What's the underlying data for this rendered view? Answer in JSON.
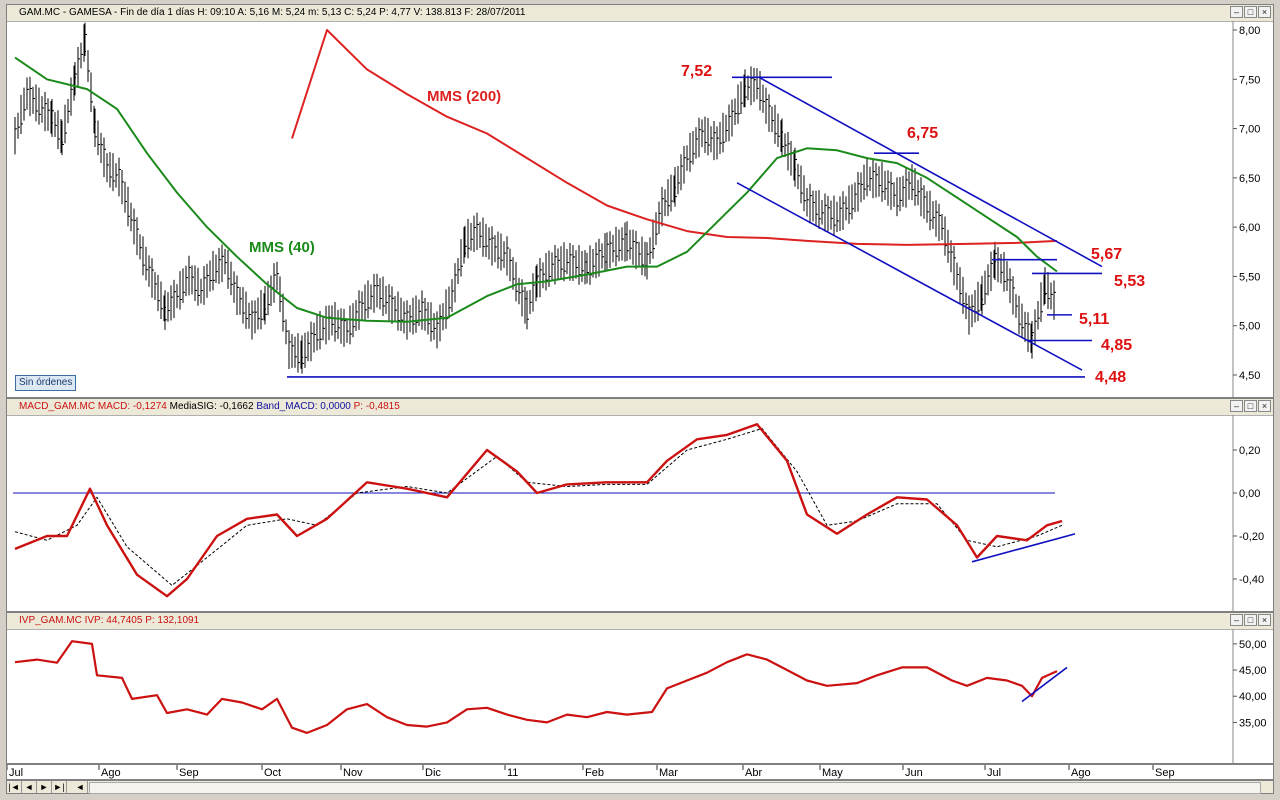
{
  "panels": {
    "price": {
      "header": "GAM.MC - GAMESA - Fin de día 1 días  H: 09:10  A: 5,16  M: 5,24  m: 5,13  C: 5,24  P: 4,77  V: 138.813  F: 28/07/2011",
      "header_p": "P : 4,77",
      "badge": "Sin órdenes"
    },
    "macd": {
      "header_name": "MACD_GAM.MC",
      "header_macd": "MACD: -0,1274",
      "header_sig": "MediaSIG: -0,1662",
      "header_band": "Band_MACD: 0,0000",
      "header_p": "P: -0,4815"
    },
    "ivp": {
      "header_name": "IVP_GAM.MC",
      "header_ivp": "IVP: 44,7405",
      "header_p": "P: 132,1091"
    }
  },
  "nav_buttons": [
    "|◄",
    "◄",
    "►",
    "►|",
    "◄"
  ],
  "colors": {
    "price_bars": "#000000",
    "mms40": "#1a8a1a",
    "mms200": "#dd2222",
    "lines": "#1010c0",
    "macd": "#cc1111",
    "signal": "#000000",
    "ivp": "#cc1111",
    "labels": "#dd1111"
  },
  "chart_data": [
    {
      "type": "line",
      "name": "price",
      "x_ticks": [
        "Jul",
        "Ago",
        "Sep",
        "Oct",
        "Nov",
        "Dic",
        "11",
        "Feb",
        "Mar",
        "Abr",
        "May",
        "Jun",
        "Jul",
        "Ago",
        "Sep"
      ],
      "y_ticks": [
        "8,00",
        "7,50",
        "7,00",
        "6,50",
        "6,00",
        "5,50",
        "5,00",
        "4,50"
      ],
      "ylim": [
        4.45,
        8.0
      ],
      "annotations": [
        {
          "text": "MMS (200)",
          "color": "#dd2222"
        },
        {
          "text": "MMS (40)",
          "color": "#1a8a1a"
        },
        {
          "text": "7,52"
        },
        {
          "text": "6,75"
        },
        {
          "text": "5,67"
        },
        {
          "text": "5,53"
        },
        {
          "text": "5,11"
        },
        {
          "text": "4,85"
        },
        {
          "text": "4,48"
        }
      ],
      "series": [
        {
          "name": "MMS (200)",
          "points": [
            [
              285,
              6.9
            ],
            [
              320,
              8.0
            ],
            [
              360,
              7.6
            ],
            [
              400,
              7.35
            ],
            [
              440,
              7.12
            ],
            [
              480,
              6.95
            ],
            [
              520,
              6.7
            ],
            [
              560,
              6.45
            ],
            [
              600,
              6.22
            ],
            [
              640,
              6.08
            ],
            [
              680,
              5.96
            ],
            [
              720,
              5.9
            ],
            [
              760,
              5.89
            ],
            [
              800,
              5.86
            ],
            [
              850,
              5.83
            ],
            [
              900,
              5.82
            ],
            [
              960,
              5.83
            ],
            [
              1010,
              5.84
            ],
            [
              1050,
              5.86
            ]
          ]
        },
        {
          "name": "MMS (40)",
          "points": [
            [
              8,
              7.72
            ],
            [
              40,
              7.5
            ],
            [
              80,
              7.4
            ],
            [
              110,
              7.2
            ],
            [
              140,
              6.75
            ],
            [
              170,
              6.35
            ],
            [
              200,
              6.0
            ],
            [
              230,
              5.7
            ],
            [
              260,
              5.42
            ],
            [
              290,
              5.18
            ],
            [
              320,
              5.08
            ],
            [
              360,
              5.05
            ],
            [
              400,
              5.04
            ],
            [
              440,
              5.08
            ],
            [
              480,
              5.3
            ],
            [
              510,
              5.42
            ],
            [
              540,
              5.45
            ],
            [
              580,
              5.52
            ],
            [
              620,
              5.6
            ],
            [
              650,
              5.6
            ],
            [
              680,
              5.75
            ],
            [
              710,
              6.05
            ],
            [
              740,
              6.35
            ],
            [
              770,
              6.7
            ],
            [
              800,
              6.8
            ],
            [
              830,
              6.78
            ],
            [
              860,
              6.7
            ],
            [
              890,
              6.65
            ],
            [
              920,
              6.5
            ],
            [
              950,
              6.3
            ],
            [
              980,
              6.1
            ],
            [
              1010,
              5.9
            ],
            [
              1030,
              5.7
            ],
            [
              1050,
              5.55
            ]
          ]
        },
        {
          "name": "price",
          "points": [
            [
              8,
              6.92
            ],
            [
              20,
              7.35
            ],
            [
              32,
              7.22
            ],
            [
              45,
              7.1
            ],
            [
              55,
              6.9
            ],
            [
              68,
              7.5
            ],
            [
              78,
              7.9
            ],
            [
              88,
              7.0
            ],
            [
              100,
              6.6
            ],
            [
              112,
              6.5
            ],
            [
              124,
              6.1
            ],
            [
              136,
              5.7
            ],
            [
              148,
              5.4
            ],
            [
              158,
              5.15
            ],
            [
              170,
              5.3
            ],
            [
              182,
              5.5
            ],
            [
              194,
              5.35
            ],
            [
              206,
              5.55
            ],
            [
              218,
              5.65
            ],
            [
              230,
              5.3
            ],
            [
              245,
              5.05
            ],
            [
              258,
              5.2
            ],
            [
              270,
              5.5
            ],
            [
              282,
              4.75
            ],
            [
              295,
              4.7
            ],
            [
              310,
              4.92
            ],
            [
              325,
              5.05
            ],
            [
              340,
              4.95
            ],
            [
              355,
              5.2
            ],
            [
              370,
              5.35
            ],
            [
              385,
              5.2
            ],
            [
              400,
              5.05
            ],
            [
              415,
              5.15
            ],
            [
              430,
              4.95
            ],
            [
              445,
              5.3
            ],
            [
              458,
              5.85
            ],
            [
              470,
              5.95
            ],
            [
              485,
              5.8
            ],
            [
              500,
              5.7
            ],
            [
              512,
              5.35
            ],
            [
              520,
              5.15
            ],
            [
              530,
              5.45
            ],
            [
              545,
              5.6
            ],
            [
              560,
              5.65
            ],
            [
              580,
              5.58
            ],
            [
              600,
              5.75
            ],
            [
              620,
              5.85
            ],
            [
              640,
              5.65
            ],
            [
              655,
              6.2
            ],
            [
              668,
              6.4
            ],
            [
              680,
              6.7
            ],
            [
              695,
              6.95
            ],
            [
              710,
              6.85
            ],
            [
              725,
              7.1
            ],
            [
              738,
              7.4
            ],
            [
              750,
              7.45
            ],
            [
              762,
              7.15
            ],
            [
              775,
              6.9
            ],
            [
              788,
              6.6
            ],
            [
              800,
              6.25
            ],
            [
              815,
              6.15
            ],
            [
              830,
              6.1
            ],
            [
              845,
              6.25
            ],
            [
              860,
              6.5
            ],
            [
              875,
              6.45
            ],
            [
              890,
              6.3
            ],
            [
              905,
              6.45
            ],
            [
              920,
              6.2
            ],
            [
              935,
              6.0
            ],
            [
              950,
              5.5
            ],
            [
              962,
              5.1
            ],
            [
              975,
              5.3
            ],
            [
              988,
              5.65
            ],
            [
              1000,
              5.5
            ],
            [
              1012,
              5.1
            ],
            [
              1025,
              4.85
            ],
            [
              1038,
              5.4
            ],
            [
              1050,
              5.2
            ]
          ]
        }
      ]
    },
    {
      "type": "line",
      "name": "macd",
      "y_ticks": [
        "0,20",
        "0,00",
        "-0,20",
        "-0,40"
      ],
      "ylim": [
        -0.48,
        0.34
      ],
      "series": [
        {
          "name": "MACD",
          "points": [
            [
              8,
              -0.26
            ],
            [
              40,
              -0.2
            ],
            [
              60,
              -0.2
            ],
            [
              83,
              0.02
            ],
            [
              100,
              -0.15
            ],
            [
              130,
              -0.38
            ],
            [
              160,
              -0.48
            ],
            [
              180,
              -0.4
            ],
            [
              210,
              -0.2
            ],
            [
              240,
              -0.12
            ],
            [
              270,
              -0.1
            ],
            [
              290,
              -0.2
            ],
            [
              320,
              -0.12
            ],
            [
              360,
              0.05
            ],
            [
              400,
              0.02
            ],
            [
              440,
              -0.02
            ],
            [
              480,
              0.2
            ],
            [
              510,
              0.1
            ],
            [
              530,
              0.0
            ],
            [
              560,
              0.04
            ],
            [
              600,
              0.05
            ],
            [
              640,
              0.05
            ],
            [
              660,
              0.15
            ],
            [
              690,
              0.25
            ],
            [
              720,
              0.27
            ],
            [
              750,
              0.32
            ],
            [
              780,
              0.15
            ],
            [
              800,
              -0.1
            ],
            [
              830,
              -0.19
            ],
            [
              860,
              -0.1
            ],
            [
              890,
              -0.02
            ],
            [
              920,
              -0.03
            ],
            [
              950,
              -0.15
            ],
            [
              970,
              -0.3
            ],
            [
              990,
              -0.2
            ],
            [
              1020,
              -0.22
            ],
            [
              1040,
              -0.15
            ],
            [
              1055,
              -0.13
            ]
          ]
        },
        {
          "name": "MediaSIG",
          "points": [
            [
              8,
              -0.18
            ],
            [
              40,
              -0.22
            ],
            [
              70,
              -0.15
            ],
            [
              90,
              -0.02
            ],
            [
              120,
              -0.25
            ],
            [
              165,
              -0.43
            ],
            [
              200,
              -0.3
            ],
            [
              240,
              -0.15
            ],
            [
              280,
              -0.12
            ],
            [
              310,
              -0.15
            ],
            [
              350,
              0.0
            ],
            [
              400,
              0.03
            ],
            [
              440,
              0.0
            ],
            [
              490,
              0.17
            ],
            [
              520,
              0.05
            ],
            [
              560,
              0.03
            ],
            [
              600,
              0.04
            ],
            [
              640,
              0.04
            ],
            [
              680,
              0.2
            ],
            [
              720,
              0.25
            ],
            [
              755,
              0.3
            ],
            [
              790,
              0.1
            ],
            [
              820,
              -0.15
            ],
            [
              850,
              -0.13
            ],
            [
              890,
              -0.05
            ],
            [
              930,
              -0.05
            ],
            [
              960,
              -0.22
            ],
            [
              990,
              -0.25
            ],
            [
              1030,
              -0.2
            ],
            [
              1055,
              -0.15
            ]
          ]
        }
      ]
    },
    {
      "type": "line",
      "name": "ivp",
      "y_ticks": [
        "50,00",
        "45,00",
        "40,00",
        "35,00"
      ],
      "ylim": [
        30.5,
        51.5
      ],
      "series": [
        {
          "name": "IVP",
          "points": [
            [
              8,
              46.5
            ],
            [
              30,
              47.0
            ],
            [
              50,
              46.4
            ],
            [
              65,
              50.5
            ],
            [
              85,
              50.0
            ],
            [
              90,
              44.0
            ],
            [
              115,
              43.5
            ],
            [
              125,
              39.5
            ],
            [
              150,
              40.2
            ],
            [
              160,
              36.8
            ],
            [
              180,
              37.5
            ],
            [
              200,
              36.5
            ],
            [
              215,
              39.5
            ],
            [
              235,
              38.8
            ],
            [
              255,
              37.5
            ],
            [
              270,
              39.5
            ],
            [
              285,
              34.0
            ],
            [
              300,
              33.0
            ],
            [
              320,
              34.5
            ],
            [
              340,
              37.5
            ],
            [
              360,
              38.5
            ],
            [
              380,
              36.0
            ],
            [
              400,
              34.5
            ],
            [
              420,
              34.2
            ],
            [
              440,
              35.0
            ],
            [
              460,
              37.5
            ],
            [
              480,
              37.8
            ],
            [
              500,
              36.5
            ],
            [
              520,
              35.5
            ],
            [
              540,
              35.0
            ],
            [
              560,
              36.5
            ],
            [
              580,
              36.0
            ],
            [
              600,
              37.0
            ],
            [
              620,
              36.5
            ],
            [
              645,
              37.0
            ],
            [
              660,
              41.5
            ],
            [
              680,
              43.0
            ],
            [
              700,
              44.5
            ],
            [
              720,
              46.5
            ],
            [
              740,
              48.0
            ],
            [
              760,
              47.0
            ],
            [
              780,
              45.0
            ],
            [
              800,
              43.0
            ],
            [
              820,
              42.0
            ],
            [
              850,
              42.5
            ],
            [
              870,
              44.0
            ],
            [
              895,
              45.5
            ],
            [
              920,
              45.5
            ],
            [
              945,
              43.0
            ],
            [
              960,
              42.0
            ],
            [
              980,
              43.5
            ],
            [
              1000,
              43.0
            ],
            [
              1015,
              42.0
            ],
            [
              1025,
              40.0
            ],
            [
              1035,
              43.5
            ],
            [
              1050,
              44.8
            ]
          ]
        }
      ]
    }
  ]
}
